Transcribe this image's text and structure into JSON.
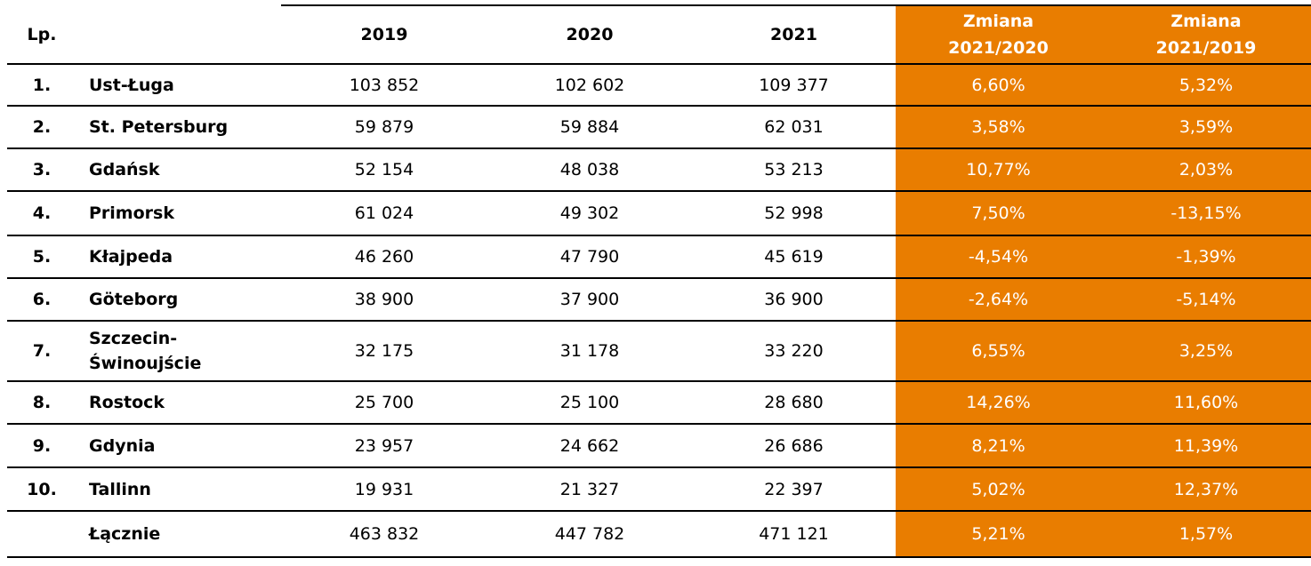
{
  "header": {
    "lp": "Lp.",
    "name": "",
    "y2019": "2019",
    "y2020": "2020",
    "y2021": "2021",
    "change1_line1": "Zmiana",
    "change1_line2": "2021/2020",
    "change2_line1": "Zmiana",
    "change2_line2": "2021/2019"
  },
  "rows": [
    {
      "lp": "1.",
      "name": "Ust-Ługa",
      "v2019": "103 852",
      "v2020": "102 602",
      "v2021": "109 377",
      "c1": "6,60%",
      "c2": "5,32%"
    },
    {
      "lp": "2.",
      "name": "St. Petersburg",
      "v2019": "59 879",
      "v2020": "59 884",
      "v2021": "62 031",
      "c1": "3,58%",
      "c2": "3,59%"
    },
    {
      "lp": "3.",
      "name": "Gdańsk",
      "v2019": "52 154",
      "v2020": "48 038",
      "v2021": "53 213",
      "c1": "10,77%",
      "c2": "2,03%"
    },
    {
      "lp": "4.",
      "name": "Primorsk",
      "v2019": "61 024",
      "v2020": "49 302",
      "v2021": "52 998",
      "c1": "7,50%",
      "c2": "-13,15%"
    },
    {
      "lp": "5.",
      "name": "Kłajpeda",
      "v2019": "46 260",
      "v2020": "47 790",
      "v2021": "45 619",
      "c1": "-4,54%",
      "c2": "-1,39%"
    },
    {
      "lp": "6.",
      "name": "Göteborg",
      "v2019": "38 900",
      "v2020": "37 900",
      "v2021": "36 900",
      "c1": "-2,64%",
      "c2": "-5,14%"
    },
    {
      "lp": "7.",
      "name": "Szczecin-Świnoujście",
      "v2019": "32 175",
      "v2020": "31 178",
      "v2021": "33 220",
      "c1": "6,55%",
      "c2": "3,25%"
    },
    {
      "lp": "8.",
      "name": "Rostock",
      "v2019": "25 700",
      "v2020": "25 100",
      "v2021": "28 680",
      "c1": "14,26%",
      "c2": "11,60%"
    },
    {
      "lp": "9.",
      "name": "Gdynia",
      "v2019": "23 957",
      "v2020": "24 662",
      "v2021": "26 686",
      "c1": "8,21%",
      "c2": "11,39%"
    },
    {
      "lp": "10.",
      "name": "Tallinn",
      "v2019": "19 931",
      "v2020": "21 327",
      "v2021": "22 397",
      "c1": "5,02%",
      "c2": "12,37%"
    },
    {
      "lp": "",
      "name": "Łącznie",
      "v2019": "463 832",
      "v2020": "447 782",
      "v2021": "471 121",
      "c1": "5,21%",
      "c2": "1,57%"
    }
  ],
  "colors": {
    "accent": "#E97D00",
    "accent_text": "#FFFFFF"
  }
}
